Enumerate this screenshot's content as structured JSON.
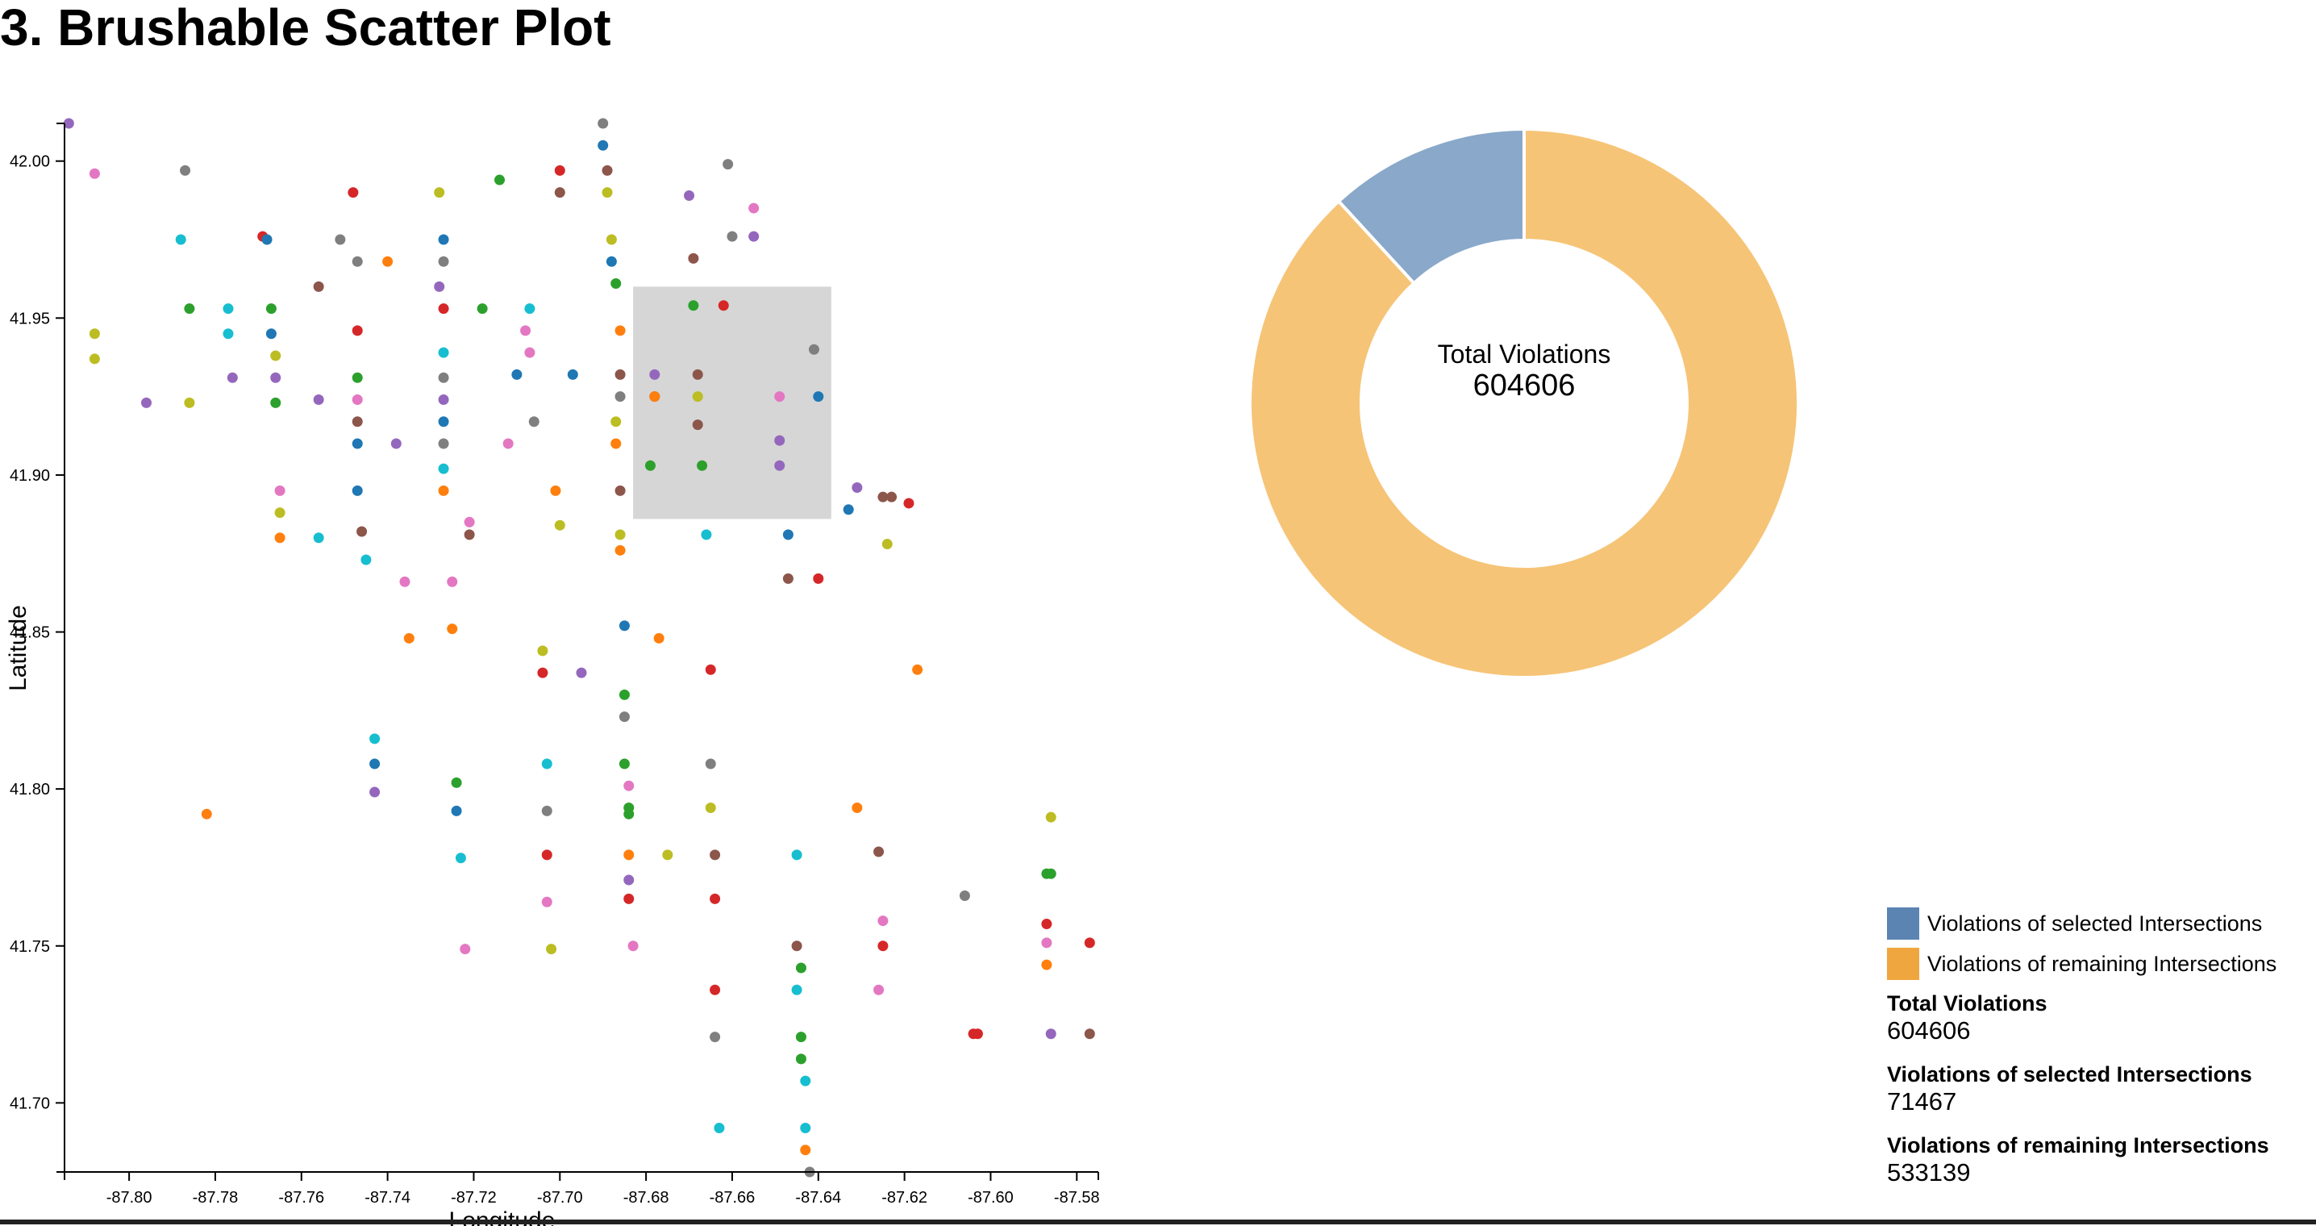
{
  "page": {
    "title": "3. Brushable Scatter Plot"
  },
  "chart_data": [
    {
      "type": "scatter",
      "xlabel": "Longitude",
      "ylabel": "Latitude",
      "xlim": [
        -87.815,
        -87.575
      ],
      "ylim": [
        41.678,
        42.012
      ],
      "x_ticks": [
        "-87.80",
        "-87.78",
        "-87.76",
        "-87.74",
        "-87.72",
        "-87.70",
        "-87.68",
        "-87.66",
        "-87.64",
        "-87.62",
        "-87.60",
        "-87.58"
      ],
      "x_tick_values": [
        -87.8,
        -87.78,
        -87.76,
        -87.74,
        -87.72,
        -87.7,
        -87.68,
        -87.66,
        -87.64,
        -87.62,
        -87.6,
        -87.58
      ],
      "y_ticks": [
        "41.70",
        "41.75",
        "41.80",
        "41.85",
        "41.90",
        "41.95",
        "42.00"
      ],
      "y_tick_values": [
        41.7,
        41.75,
        41.8,
        41.85,
        41.9,
        41.95,
        42.0
      ],
      "brush": {
        "x0": -87.683,
        "x1": -87.637,
        "y0": 41.886,
        "y1": 41.96
      },
      "palette": [
        "#1f77b4",
        "#ff7f0e",
        "#2ca02c",
        "#d62728",
        "#9467bd",
        "#8c564b",
        "#e377c2",
        "#7f7f7f",
        "#bcbd22",
        "#17becf"
      ],
      "points": [
        [
          -87.814,
          42.012,
          4
        ],
        [
          -87.808,
          41.996,
          6
        ],
        [
          -87.787,
          41.997,
          7
        ],
        [
          -87.788,
          41.975,
          9
        ],
        [
          -87.769,
          41.976,
          3
        ],
        [
          -87.768,
          41.975,
          0
        ],
        [
          -87.748,
          41.99,
          3
        ],
        [
          -87.751,
          41.975,
          7
        ],
        [
          -87.747,
          41.968,
          7
        ],
        [
          -87.74,
          41.968,
          1
        ],
        [
          -87.728,
          41.99,
          8
        ],
        [
          -87.727,
          41.975,
          0
        ],
        [
          -87.727,
          41.968,
          7
        ],
        [
          -87.714,
          41.994,
          2
        ],
        [
          -87.7,
          41.997,
          3
        ],
        [
          -87.7,
          41.99,
          5
        ],
        [
          -87.69,
          42.012,
          7
        ],
        [
          -87.69,
          42.005,
          0
        ],
        [
          -87.689,
          41.997,
          5
        ],
        [
          -87.689,
          41.99,
          8
        ],
        [
          -87.688,
          41.975,
          8
        ],
        [
          -87.688,
          41.968,
          0
        ],
        [
          -87.687,
          41.961,
          2
        ],
        [
          -87.67,
          41.989,
          4
        ],
        [
          -87.661,
          41.999,
          7
        ],
        [
          -87.66,
          41.976,
          7
        ],
        [
          -87.655,
          41.976,
          4
        ],
        [
          -87.655,
          41.985,
          6
        ],
        [
          -87.669,
          41.969,
          5
        ],
        [
          -87.808,
          41.945,
          8
        ],
        [
          -87.808,
          41.937,
          8
        ],
        [
          -87.786,
          41.953,
          2
        ],
        [
          -87.777,
          41.953,
          9
        ],
        [
          -87.777,
          41.945,
          9
        ],
        [
          -87.767,
          41.953,
          2
        ],
        [
          -87.767,
          41.945,
          0
        ],
        [
          -87.766,
          41.938,
          8
        ],
        [
          -87.756,
          41.96,
          5
        ],
        [
          -87.747,
          41.946,
          3
        ],
        [
          -87.747,
          41.931,
          2
        ],
        [
          -87.728,
          41.96,
          4
        ],
        [
          -87.727,
          41.953,
          3
        ],
        [
          -87.727,
          41.939,
          9
        ],
        [
          -87.727,
          41.931,
          7
        ],
        [
          -87.718,
          41.953,
          2
        ],
        [
          -87.707,
          41.953,
          9
        ],
        [
          -87.708,
          41.946,
          6
        ],
        [
          -87.707,
          41.939,
          6
        ],
        [
          -87.71,
          41.932,
          0
        ],
        [
          -87.697,
          41.932,
          0
        ],
        [
          -87.686,
          41.946,
          1
        ],
        [
          -87.686,
          41.932,
          5
        ],
        [
          -87.686,
          41.925,
          7
        ],
        [
          -87.669,
          41.954,
          2
        ],
        [
          -87.662,
          41.954,
          3
        ],
        [
          -87.678,
          41.932,
          4
        ],
        [
          -87.678,
          41.925,
          5
        ],
        [
          -87.668,
          41.932,
          5
        ],
        [
          -87.668,
          41.925,
          8
        ],
        [
          -87.668,
          41.916,
          5
        ],
        [
          -87.678,
          41.925,
          1
        ],
        [
          -87.679,
          41.903,
          2
        ],
        [
          -87.667,
          41.903,
          2
        ],
        [
          -87.649,
          41.925,
          6
        ],
        [
          -87.641,
          41.94,
          7
        ],
        [
          -87.64,
          41.925,
          0
        ],
        [
          -87.649,
          41.911,
          4
        ],
        [
          -87.649,
          41.903,
          4
        ],
        [
          -87.796,
          41.923,
          4
        ],
        [
          -87.786,
          41.923,
          8
        ],
        [
          -87.776,
          41.931,
          4
        ],
        [
          -87.766,
          41.931,
          4
        ],
        [
          -87.766,
          41.923,
          2
        ],
        [
          -87.756,
          41.924,
          4
        ],
        [
          -87.747,
          41.924,
          6
        ],
        [
          -87.747,
          41.917,
          5
        ],
        [
          -87.747,
          41.91,
          0
        ],
        [
          -87.738,
          41.91,
          4
        ],
        [
          -87.727,
          41.924,
          4
        ],
        [
          -87.727,
          41.917,
          0
        ],
        [
          -87.727,
          41.91,
          7
        ],
        [
          -87.712,
          41.91,
          6
        ],
        [
          -87.706,
          41.917,
          7
        ],
        [
          -87.687,
          41.917,
          8
        ],
        [
          -87.687,
          41.91,
          1
        ],
        [
          -87.686,
          41.895,
          5
        ],
        [
          -87.727,
          41.902,
          9
        ],
        [
          -87.727,
          41.895,
          1
        ],
        [
          -87.701,
          41.895,
          1
        ],
        [
          -87.7,
          41.884,
          8
        ],
        [
          -87.765,
          41.895,
          6
        ],
        [
          -87.765,
          41.888,
          8
        ],
        [
          -87.765,
          41.88,
          1
        ],
        [
          -87.756,
          41.88,
          9
        ],
        [
          -87.747,
          41.895,
          0
        ],
        [
          -87.746,
          41.882,
          5
        ],
        [
          -87.745,
          41.873,
          9
        ],
        [
          -87.721,
          41.885,
          6
        ],
        [
          -87.721,
          41.881,
          5
        ],
        [
          -87.686,
          41.881,
          8
        ],
        [
          -87.686,
          41.876,
          1
        ],
        [
          -87.666,
          41.881,
          9
        ],
        [
          -87.647,
          41.881,
          0
        ],
        [
          -87.631,
          41.896,
          4
        ],
        [
          -87.633,
          41.889,
          0
        ],
        [
          -87.625,
          41.893,
          5
        ],
        [
          -87.623,
          41.893,
          5
        ],
        [
          -87.619,
          41.891,
          3
        ],
        [
          -87.624,
          41.878,
          8
        ],
        [
          -87.647,
          41.867,
          5
        ],
        [
          -87.64,
          41.867,
          3
        ],
        [
          -87.736,
          41.866,
          6
        ],
        [
          -87.725,
          41.866,
          6
        ],
        [
          -87.735,
          41.848,
          1
        ],
        [
          -87.725,
          41.851,
          1
        ],
        [
          -87.685,
          41.852,
          0
        ],
        [
          -87.677,
          41.848,
          1
        ],
        [
          -87.704,
          41.844,
          8
        ],
        [
          -87.704,
          41.837,
          3
        ],
        [
          -87.695,
          41.837,
          4
        ],
        [
          -87.665,
          41.838,
          3
        ],
        [
          -87.617,
          41.838,
          1
        ],
        [
          -87.685,
          41.83,
          2
        ],
        [
          -87.685,
          41.823,
          7
        ],
        [
          -87.743,
          41.816,
          9
        ],
        [
          -87.743,
          41.808,
          0
        ],
        [
          -87.743,
          41.799,
          4
        ],
        [
          -87.724,
          41.802,
          2
        ],
        [
          -87.724,
          41.793,
          0
        ],
        [
          -87.703,
          41.808,
          9
        ],
        [
          -87.703,
          41.793,
          7
        ],
        [
          -87.685,
          41.808,
          2
        ],
        [
          -87.684,
          41.801,
          6
        ],
        [
          -87.684,
          41.794,
          2
        ],
        [
          -87.684,
          41.792,
          2
        ],
        [
          -87.665,
          41.808,
          7
        ],
        [
          -87.665,
          41.794,
          8
        ],
        [
          -87.631,
          41.794,
          1
        ],
        [
          -87.782,
          41.792,
          1
        ],
        [
          -87.723,
          41.778,
          9
        ],
        [
          -87.703,
          41.779,
          3
        ],
        [
          -87.684,
          41.779,
          1
        ],
        [
          -87.675,
          41.779,
          8
        ],
        [
          -87.664,
          41.779,
          5
        ],
        [
          -87.645,
          41.779,
          9
        ],
        [
          -87.626,
          41.78,
          5
        ],
        [
          -87.586,
          41.791,
          8
        ],
        [
          -87.587,
          41.773,
          2
        ],
        [
          -87.586,
          41.773,
          2
        ],
        [
          -87.606,
          41.766,
          7
        ],
        [
          -87.684,
          41.771,
          4
        ],
        [
          -87.684,
          41.765,
          3
        ],
        [
          -87.703,
          41.764,
          6
        ],
        [
          -87.664,
          41.765,
          3
        ],
        [
          -87.625,
          41.758,
          6
        ],
        [
          -87.587,
          41.757,
          3
        ],
        [
          -87.587,
          41.751,
          6
        ],
        [
          -87.577,
          41.751,
          3
        ],
        [
          -87.625,
          41.75,
          3
        ],
        [
          -87.645,
          41.75,
          5
        ],
        [
          -87.683,
          41.75,
          6
        ],
        [
          -87.702,
          41.749,
          8
        ],
        [
          -87.722,
          41.749,
          6
        ],
        [
          -87.644,
          41.743,
          2
        ],
        [
          -87.587,
          41.744,
          1
        ],
        [
          -87.664,
          41.736,
          3
        ],
        [
          -87.645,
          41.736,
          9
        ],
        [
          -87.626,
          41.736,
          6
        ],
        [
          -87.664,
          41.721,
          7
        ],
        [
          -87.644,
          41.721,
          2
        ],
        [
          -87.644,
          41.714,
          2
        ],
        [
          -87.643,
          41.707,
          9
        ],
        [
          -87.604,
          41.722,
          3
        ],
        [
          -87.603,
          41.722,
          3
        ],
        [
          -87.586,
          41.722,
          4
        ],
        [
          -87.577,
          41.722,
          5
        ],
        [
          -87.663,
          41.692,
          9
        ],
        [
          -87.643,
          41.692,
          9
        ],
        [
          -87.643,
          41.685,
          1
        ],
        [
          -87.642,
          41.678,
          7
        ]
      ]
    },
    {
      "type": "pie",
      "title": "Total Violations",
      "total": 604606,
      "slices": [
        {
          "label": "Violations of selected Intersections",
          "value": 71467,
          "color": "#89a8ca"
        },
        {
          "label": "Violations of remaining Intersections",
          "value": 533139,
          "color": "#f6c477"
        }
      ]
    }
  ],
  "legend": {
    "items": [
      {
        "label": "Violations of selected Intersections",
        "color": "#5b84b3"
      },
      {
        "label": "Violations of remaining Intersections",
        "color": "#f0a63f"
      }
    ]
  },
  "stats": {
    "total_label": "Total Violations",
    "total_value": "604606",
    "selected_label": "Violations of selected Intersections",
    "selected_value": "71467",
    "remaining_label": "Violations of remaining Intersections",
    "remaining_value": "533139"
  }
}
